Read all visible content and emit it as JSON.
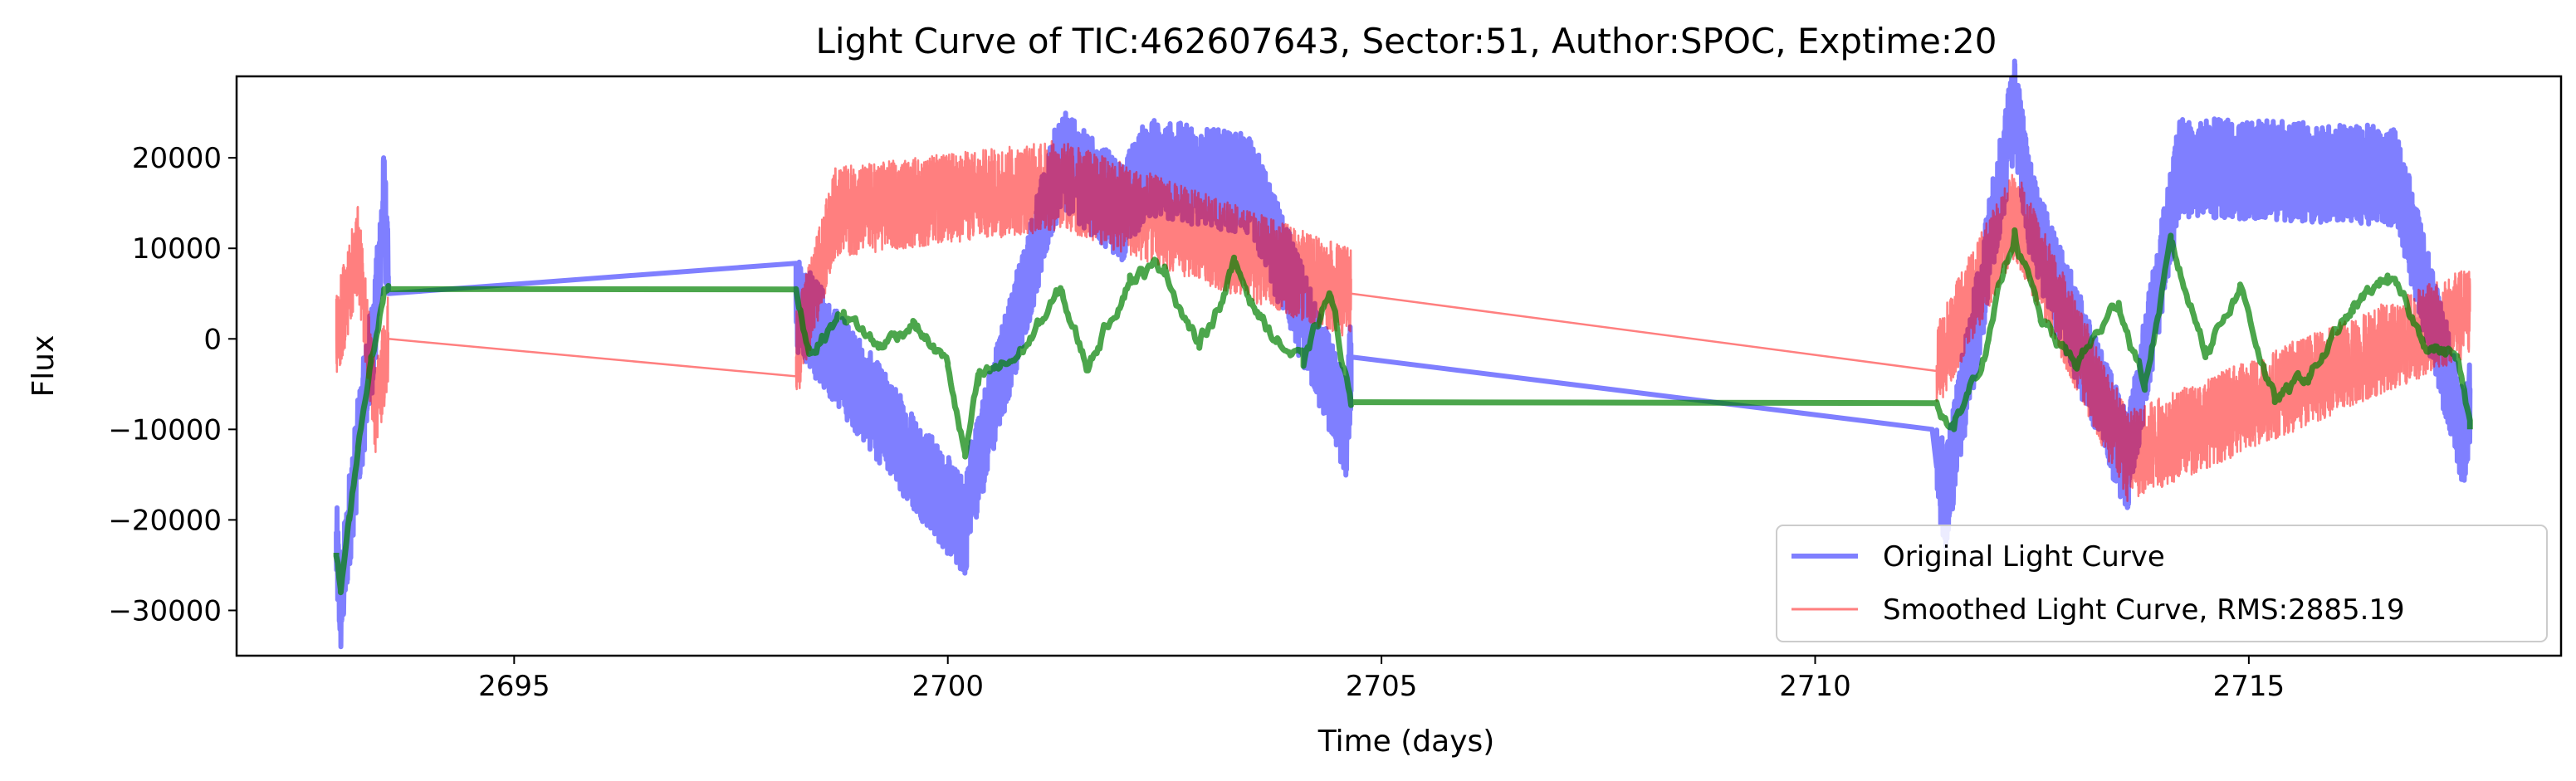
{
  "chart_data": {
    "type": "line",
    "title": "Light Curve of TIC:462607643, Sector:51, Author:SPOC, Exptime:20",
    "xlabel": "Time (days)",
    "ylabel": "Flux",
    "xlim": [
      2691.8,
      2718.6
    ],
    "ylim": [
      -35000,
      29000
    ],
    "xticks": [
      2695,
      2700,
      2705,
      2710,
      2715
    ],
    "yticks": [
      -30000,
      -20000,
      -10000,
      0,
      10000,
      20000
    ],
    "xtick_labels": [
      "2695",
      "2700",
      "2705",
      "2710",
      "2715"
    ],
    "ytick_labels": [
      "−30000",
      "−20000",
      "−10000",
      "0",
      "10000",
      "20000"
    ],
    "grid": false,
    "legend_position": "lower-right",
    "segments": [
      [
        2692.95,
        2693.55
      ],
      [
        2698.25,
        2704.65
      ],
      [
        2711.4,
        2717.55
      ]
    ],
    "series": [
      {
        "name": "Original Light Curve",
        "role": "original",
        "color": "#0000ff",
        "opacity": 0.5,
        "points": [
          [
            2692.95,
            -23000
          ],
          [
            2693.0,
            -30000
          ],
          [
            2693.05,
            -25000
          ],
          [
            2693.1,
            -20000
          ],
          [
            2693.2,
            -12000
          ],
          [
            2693.3,
            -5000
          ],
          [
            2693.4,
            2000
          ],
          [
            2693.45,
            9000
          ],
          [
            2693.5,
            16000
          ],
          [
            2693.55,
            5000
          ],
          [
            2698.25,
            4000
          ],
          [
            2700.2,
            -21000
          ],
          [
            2700.25,
            -17000
          ],
          [
            2701.3,
            20000
          ],
          [
            2702.0,
            14000
          ],
          [
            2702.3,
            19000
          ],
          [
            2703.5,
            17000
          ],
          [
            2704.6,
            -10000
          ],
          [
            2704.65,
            -2000
          ],
          [
            2711.35,
            -10000
          ],
          [
            2711.5,
            -18000
          ],
          [
            2712.3,
            26000
          ],
          [
            2712.5,
            13000
          ],
          [
            2713.6,
            -14000
          ],
          [
            2714.2,
            19000
          ],
          [
            2716.7,
            18000
          ],
          [
            2717.5,
            -12000
          ],
          [
            2717.55,
            -6000
          ]
        ],
        "noise_amplitude": 5500
      },
      {
        "name": "Smoothed Light Curve, RMS:2885.19",
        "role": "smoothed",
        "color": "#ff0000",
        "opacity": 0.5,
        "points": [
          [
            2692.95,
            0
          ],
          [
            2693.2,
            10000
          ],
          [
            2693.4,
            -8000
          ],
          [
            2693.55,
            0
          ],
          [
            2698.25,
            -2000
          ],
          [
            2698.7,
            14000
          ],
          [
            2701.3,
            17000
          ],
          [
            2704.65,
            5000
          ],
          [
            2711.4,
            -3000
          ],
          [
            2712.3,
            14000
          ],
          [
            2713.6,
            -13000
          ],
          [
            2717.55,
            3000
          ]
        ],
        "noise_amplitude": 5000
      },
      {
        "name": "",
        "role": "trend",
        "color": "#008000",
        "opacity": 0.7,
        "points": [
          [
            2692.95,
            -24000
          ],
          [
            2693.0,
            -28000
          ],
          [
            2693.1,
            -20000
          ],
          [
            2693.2,
            -12000
          ],
          [
            2693.35,
            -2000
          ],
          [
            2693.5,
            5500
          ],
          [
            2693.55,
            5500
          ],
          [
            2698.25,
            5500
          ],
          [
            2698.4,
            -1000
          ],
          [
            2698.8,
            3000
          ],
          [
            2699.2,
            -1000
          ],
          [
            2699.6,
            2000
          ],
          [
            2700.0,
            -3000
          ],
          [
            2700.2,
            -13000
          ],
          [
            2700.35,
            -5000
          ],
          [
            2700.8,
            -2000
          ],
          [
            2701.3,
            5000
          ],
          [
            2701.6,
            -3000
          ],
          [
            2702.1,
            7000
          ],
          [
            2702.5,
            8000
          ],
          [
            2702.9,
            -1000
          ],
          [
            2703.3,
            8000
          ],
          [
            2703.7,
            1000
          ],
          [
            2704.1,
            -3000
          ],
          [
            2704.4,
            5000
          ],
          [
            2704.65,
            -7000
          ],
          [
            2711.4,
            -7000
          ],
          [
            2711.6,
            -10000
          ],
          [
            2712.0,
            0
          ],
          [
            2712.3,
            12000
          ],
          [
            2712.6,
            2000
          ],
          [
            2713.0,
            -3000
          ],
          [
            2713.5,
            4000
          ],
          [
            2713.8,
            -5000
          ],
          [
            2714.1,
            10000
          ],
          [
            2714.5,
            -1000
          ],
          [
            2714.9,
            6000
          ],
          [
            2715.3,
            -7000
          ],
          [
            2715.7,
            -4000
          ],
          [
            2716.2,
            3000
          ],
          [
            2716.6,
            7000
          ],
          [
            2717.0,
            0
          ],
          [
            2717.4,
            -2000
          ],
          [
            2717.55,
            -10000
          ]
        ],
        "noise_amplitude": 1200
      }
    ]
  }
}
